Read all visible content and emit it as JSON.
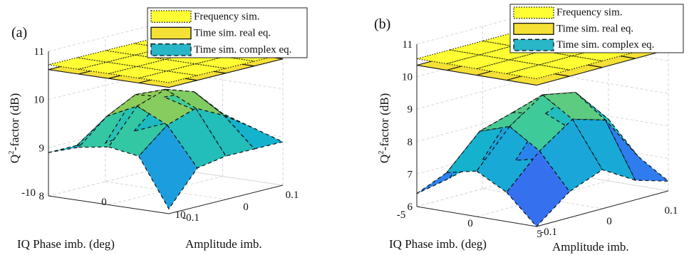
{
  "chart_data": [
    {
      "type": "surface3d",
      "panel_label": "(a)",
      "zlabel_base": "Q",
      "zlabel_sup": "2",
      "zlabel_rest": "-factor (dB)",
      "xlabel": "IQ Phase imb. (deg)",
      "ylabel": "Amplitude imb.",
      "x_ticks": [
        "-10",
        "0",
        "10"
      ],
      "y_ticks": [
        "-0.1",
        "0",
        "0.1"
      ],
      "z_ticks": [
        "8",
        "9",
        "10",
        "11"
      ],
      "zlim": [
        8,
        11
      ],
      "legend": [
        "Frequency sim.",
        "Time sim. real eq.",
        "Time sim. complex eq."
      ],
      "series": [
        {
          "name": "Frequency sim.",
          "style": "dotted",
          "color": "#ffff33",
          "z_level": 10.72
        },
        {
          "name": "Time sim. real eq.",
          "style": "solid",
          "color": "#f5e035",
          "z_level": 10.62
        },
        {
          "name": "Time sim. complex eq.",
          "style": "dashed",
          "x": [
            -10,
            -5,
            0,
            5,
            10
          ],
          "y": [
            -0.1,
            -0.05,
            0,
            0.05,
            0.1
          ],
          "z": [
            [
              8.9,
              8.9,
              8.8,
              8.9,
              8.9
            ],
            [
              9.1,
              9.6,
              9.9,
              9.7,
              9.3
            ],
            [
              9.2,
              9.9,
              10.1,
              9.9,
              9.3
            ],
            [
              9.1,
              9.6,
              9.8,
              9.5,
              9.1
            ],
            [
              8.1,
              8.8,
              8.9,
              8.9,
              8.9
            ]
          ]
        }
      ]
    },
    {
      "type": "surface3d",
      "panel_label": "(b)",
      "zlabel_base": "Q",
      "zlabel_sup": "2",
      "zlabel_rest": "-factor (dB)",
      "xlabel": "IQ Phase imb. (deg)",
      "ylabel": "Amplitude imb.",
      "x_ticks": [
        "-5",
        "0",
        "5"
      ],
      "y_ticks": [
        "-0.1",
        "0",
        "0.1"
      ],
      "z_ticks": [
        "6",
        "7",
        "8",
        "9",
        "10",
        "11"
      ],
      "zlim": [
        6,
        11
      ],
      "legend": [
        "Frequency sim.",
        "Time sim. real eq.",
        "Time sim. complex eq."
      ],
      "series": [
        {
          "name": "Frequency sim.",
          "style": "dotted",
          "color": "#ffff33",
          "z_level": 10.55
        },
        {
          "name": "Time sim. real eq.",
          "style": "solid",
          "color": "#f5e035",
          "z_level": 10.35
        },
        {
          "name": "Time sim. complex eq.",
          "style": "dashed",
          "x": [
            -5,
            -2.5,
            0,
            2.5,
            5
          ],
          "y": [
            -0.1,
            -0.05,
            0,
            0.05,
            0.1
          ],
          "z": [
            [
              6.4,
              6.6,
              6.9,
              6.6,
              6.4
            ],
            [
              7.2,
              8.2,
              8.5,
              8.2,
              7.3
            ],
            [
              7.4,
              8.5,
              9.2,
              9.0,
              7.9
            ],
            [
              6.9,
              7.9,
              8.6,
              8.3,
              6.9
            ],
            [
              6.0,
              6.8,
              7.2,
              6.6,
              6.3
            ]
          ]
        }
      ]
    }
  ]
}
